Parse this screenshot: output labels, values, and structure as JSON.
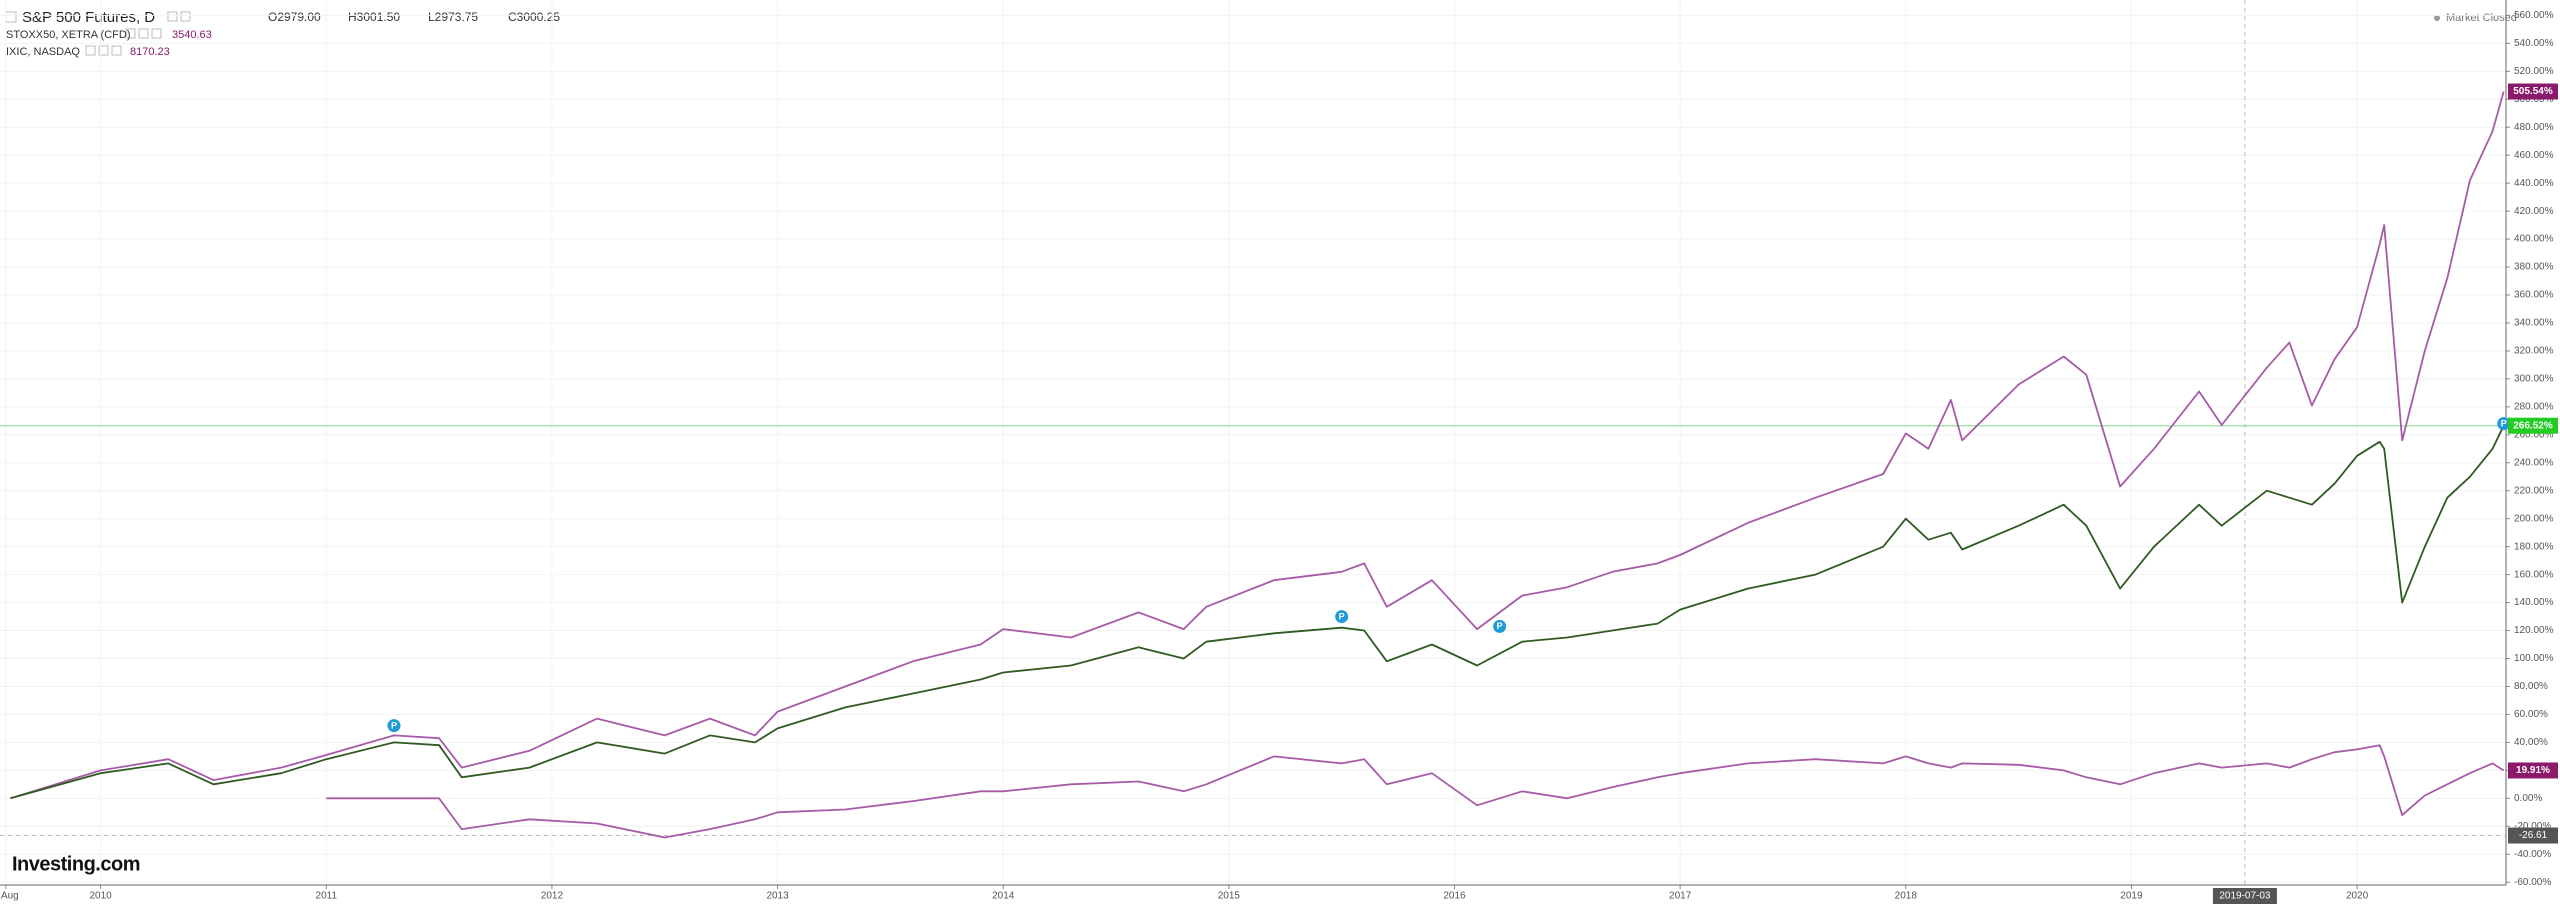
{
  "chart_data": {
    "type": "line",
    "title": "S&P 500 Futures, D",
    "ohlc": [
      "O2979.00",
      "H3001.50",
      "L2973.75",
      "C3000.25"
    ],
    "status": "Market Closed",
    "brand": "Investing.com",
    "x": [
      2009.6,
      2010.0,
      2010.3,
      2010.5,
      2010.8,
      2011.0,
      2011.3,
      2011.5,
      2011.6,
      2011.9,
      2012.2,
      2012.5,
      2012.7,
      2012.9,
      2013.0,
      2013.3,
      2013.6,
      2013.9,
      2014.0,
      2014.3,
      2014.6,
      2014.8,
      2014.9,
      2015.2,
      2015.5,
      2015.6,
      2015.7,
      2015.9,
      2016.1,
      2016.3,
      2016.5,
      2016.7,
      2016.9,
      2017.0,
      2017.3,
      2017.6,
      2017.9,
      2018.0,
      2018.1,
      2018.2,
      2018.25,
      2018.5,
      2018.7,
      2018.8,
      2018.95,
      2019.1,
      2019.3,
      2019.4,
      2019.6,
      2019.7,
      2019.8,
      2019.9,
      2020.0,
      2020.1,
      2020.12,
      2020.2,
      2020.3,
      2020.4,
      2020.5,
      2020.6,
      2020.65
    ],
    "series": [
      {
        "name": "IXIC, NASDAQ",
        "last": "8170.23",
        "color": "#a65aa8",
        "badge_color": "#8b1a6b",
        "values": [
          0,
          20,
          28,
          13,
          22,
          31,
          45,
          43,
          22,
          34,
          57,
          45,
          57,
          45,
          62,
          80,
          98,
          110,
          121,
          115,
          133,
          121,
          137,
          156,
          162,
          168,
          137,
          156,
          121,
          145,
          151,
          162,
          168,
          174,
          197,
          215,
          232,
          261,
          250,
          285,
          256,
          296,
          316,
          303,
          223,
          250,
          291,
          267,
          308,
          326,
          281,
          314,
          337,
          396,
          410,
          256,
          320,
          372,
          442,
          477,
          505.54
        ],
        "value_labels": [
          null,
          null,
          null,
          null,
          null,
          null,
          null,
          null,
          null,
          null,
          null,
          null,
          null,
          null,
          null,
          null,
          null,
          null,
          null,
          null,
          null,
          null,
          null,
          null,
          null,
          null,
          null,
          null,
          null,
          null,
          null,
          null,
          null,
          null,
          null,
          null,
          null,
          null,
          null,
          null,
          null,
          null,
          null,
          null,
          null,
          null,
          null,
          null,
          null,
          null,
          null,
          null,
          null,
          null,
          null,
          null,
          null,
          null,
          null,
          null,
          "505.54%"
        ]
      },
      {
        "name": "S&P 500 Futures, D",
        "color": "#2f5a22",
        "badge_color": "#22cc22",
        "values": [
          0,
          18,
          25,
          10,
          18,
          28,
          40,
          38,
          15,
          22,
          40,
          32,
          45,
          40,
          50,
          65,
          75,
          85,
          90,
          95,
          108,
          100,
          112,
          118,
          122,
          120,
          98,
          110,
          95,
          112,
          115,
          120,
          125,
          135,
          150,
          160,
          180,
          200,
          185,
          190,
          178,
          195,
          210,
          195,
          150,
          180,
          210,
          195,
          220,
          215,
          210,
          225,
          245,
          255,
          250,
          140,
          180,
          215,
          230,
          250,
          266.52
        ],
        "value_labels": [
          null,
          null,
          null,
          null,
          null,
          null,
          null,
          null,
          null,
          null,
          null,
          null,
          null,
          null,
          null,
          null,
          null,
          null,
          null,
          null,
          null,
          null,
          null,
          null,
          null,
          null,
          null,
          null,
          null,
          null,
          null,
          null,
          null,
          null,
          null,
          null,
          null,
          null,
          null,
          null,
          null,
          null,
          null,
          null,
          null,
          null,
          null,
          null,
          null,
          null,
          null,
          null,
          null,
          null,
          null,
          null,
          null,
          null,
          null,
          null,
          "266.52%"
        ]
      },
      {
        "name": "STOXX50, XETRA (CFD)",
        "last": "3540.63",
        "color": "#a65aa8",
        "badge_color": "#8b1a6b",
        "values": [
          null,
          null,
          null,
          null,
          null,
          0,
          0,
          0,
          -22,
          -15,
          -18,
          -28,
          -22,
          -15,
          -10,
          -8,
          -2,
          5,
          5,
          10,
          12,
          5,
          10,
          30,
          25,
          28,
          10,
          18,
          -5,
          5,
          0,
          8,
          15,
          18,
          25,
          28,
          25,
          30,
          25,
          22,
          25,
          24,
          20,
          15,
          10,
          18,
          25,
          22,
          25,
          22,
          28,
          33,
          35,
          38,
          30,
          -12,
          2,
          10,
          18,
          25,
          19.91
        ],
        "value_labels": [
          null,
          null,
          null,
          null,
          null,
          null,
          null,
          null,
          null,
          null,
          null,
          null,
          null,
          null,
          null,
          null,
          null,
          null,
          null,
          null,
          null,
          null,
          null,
          null,
          null,
          null,
          null,
          null,
          null,
          null,
          null,
          null,
          null,
          null,
          null,
          null,
          null,
          null,
          null,
          null,
          null,
          null,
          null,
          null,
          null,
          null,
          null,
          null,
          null,
          null,
          null,
          null,
          null,
          null,
          null,
          null,
          null,
          null,
          null,
          null,
          "19.91%"
        ]
      }
    ],
    "markers": [
      {
        "x": 2011.3,
        "y": 52,
        "label": "P"
      },
      {
        "x": 2015.5,
        "y": 130,
        "label": "P"
      },
      {
        "x": 2016.2,
        "y": 123,
        "label": "P"
      },
      {
        "x": 2020.65,
        "y": 268,
        "label": "P"
      }
    ],
    "crosshair": {
      "x": {
        "value": 2019.503,
        "label": "2019-07-03"
      },
      "y": -26.61
    },
    "xlim": [
      2009.554,
      2020.66
    ],
    "xticks": [
      {
        "value": 2009.58,
        "label": "Aug"
      },
      2010,
      2011,
      2012,
      2013,
      2014,
      2015,
      2016,
      2017,
      2018,
      2019,
      2020
    ],
    "ylim": [
      -62,
      571
    ],
    "yticks": [
      {
        "value": -60,
        "label": "-60.00%"
      },
      {
        "value": -40,
        "label": "-40.00%"
      },
      {
        "value": -20,
        "label": "-20.00%"
      },
      {
        "value": 0,
        "label": "0.00%"
      },
      {
        "value": 20,
        "label": "20.00%"
      },
      {
        "value": 40,
        "label": "40.00%"
      },
      {
        "value": 60,
        "label": "60.00%"
      },
      {
        "value": 80,
        "label": "80.00%"
      },
      {
        "value": 100,
        "label": "100.00%"
      },
      {
        "value": 120,
        "label": "120.00%"
      },
      {
        "value": 140,
        "label": "140.00%"
      },
      {
        "value": 160,
        "label": "160.00%"
      },
      {
        "value": 180,
        "label": "180.00%"
      },
      {
        "value": 200,
        "label": "200.00%"
      },
      {
        "value": 220,
        "label": "220.00%"
      },
      {
        "value": 240,
        "label": "240.00%"
      },
      {
        "value": 260,
        "label": "260.00%"
      },
      {
        "value": 280,
        "label": "280.00%"
      },
      {
        "value": 300,
        "label": "300.00%"
      },
      {
        "value": 320,
        "label": "320.00%"
      },
      {
        "value": 340,
        "label": "340.00%"
      },
      {
        "value": 360,
        "label": "360.00%"
      },
      {
        "value": 380,
        "label": "380.00%"
      },
      {
        "value": 400,
        "label": "400.00%"
      },
      {
        "value": 420,
        "label": "420.00%"
      },
      {
        "value": 440,
        "label": "440.00%"
      },
      {
        "value": 460,
        "label": "460.00%"
      },
      {
        "value": 480,
        "label": "480.00%"
      },
      {
        "value": 500,
        "label": "500.00%"
      },
      {
        "value": 520,
        "label": "520.00%"
      },
      {
        "value": 540,
        "label": "540.00%"
      },
      {
        "value": 560,
        "label": "560.00%"
      }
    ],
    "grid": true
  }
}
